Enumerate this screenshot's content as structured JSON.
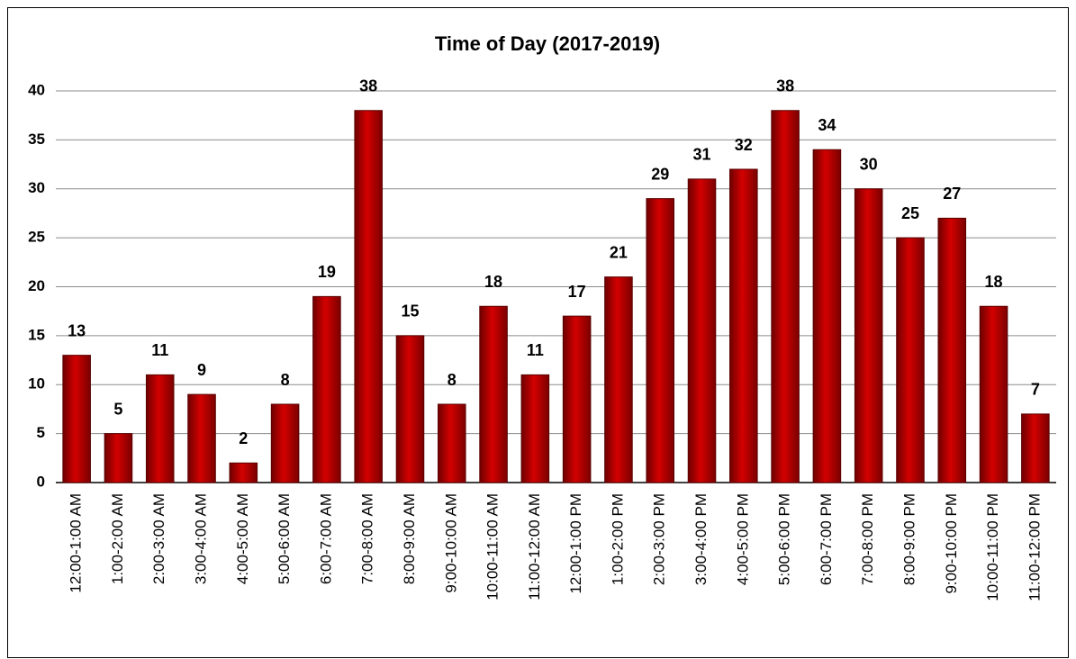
{
  "chart_data": {
    "type": "bar",
    "title": "Time of Day (2017-2019)",
    "categories": [
      "12:00-1:00 AM",
      "1:00-2:00 AM",
      "2:00-3:00 AM",
      "3:00-4:00 AM",
      "4:00-5:00 AM",
      "5:00-6:00 AM",
      "6:00-7:00 AM",
      "7:00-8:00 AM",
      "8:00-9:00 AM",
      "9:00-10:00 AM",
      "10:00-11:00 AM",
      "11:00-12:00 AM",
      "12:00-1:00 PM",
      "1:00-2:00 PM",
      "2:00-3:00 PM",
      "3:00-4:00 PM",
      "4:00-5:00 PM",
      "5:00-6:00 PM",
      "6:00-7:00 PM",
      "7:00-8:00 PM",
      "8:00-9:00 PM",
      "9:00-10:00 PM",
      "10:00-11:00 PM",
      "11:00-12:00 PM"
    ],
    "values": [
      13,
      5,
      11,
      9,
      2,
      8,
      19,
      38,
      15,
      8,
      18,
      11,
      17,
      21,
      29,
      31,
      32,
      38,
      34,
      30,
      25,
      27,
      18,
      7
    ],
    "color": "#d40000",
    "ylim": [
      0,
      40
    ],
    "yticks": [
      0,
      5,
      10,
      15,
      20,
      25,
      30,
      35,
      40
    ],
    "grid": true
  }
}
